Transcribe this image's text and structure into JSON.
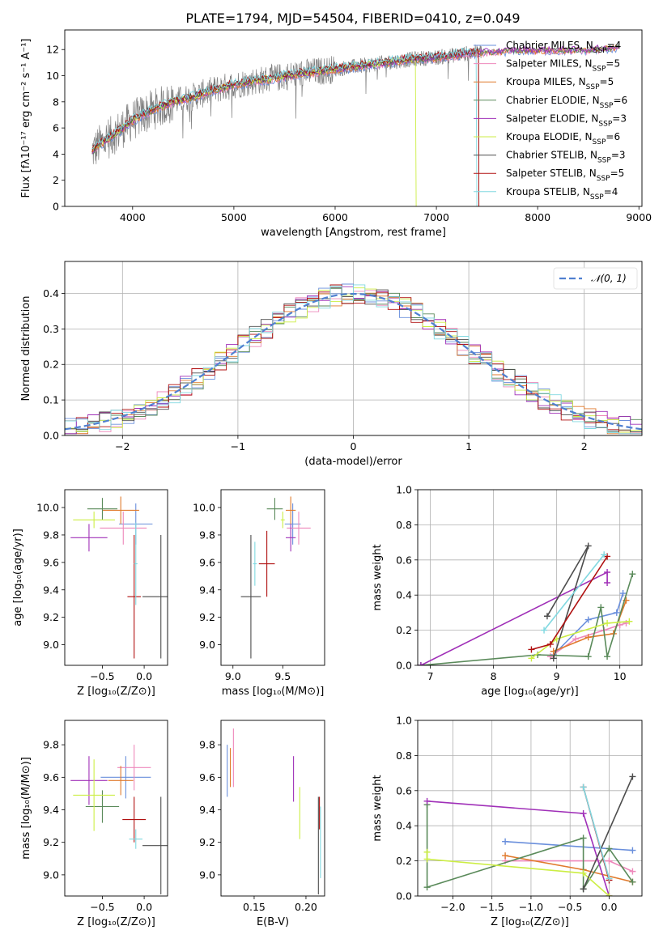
{
  "title": "PLATE=1794, MJD=54504, FIBERID=0410, z=0.049",
  "colors": {
    "chabrier_miles": "#6a8fdc",
    "salpeter_miles": "#ee88bb",
    "kroupa_miles": "#e07a2c",
    "chabrier_elodie": "#5a8a5a",
    "salpeter_elodie": "#a030b8",
    "kroupa_elodie": "#ccee44",
    "chabrier_stelib": "#4d4d4d",
    "salpeter_stelib": "#b01010",
    "kroupa_stelib": "#80d8e0",
    "data_spectrum": "#808080",
    "normal_curve": "#5080d0",
    "grid": "#b0b0b0"
  },
  "legend": [
    {
      "key": "chabrier_miles",
      "label": "Chabrier MILES, N",
      "sub": "SSP",
      "val": "=4"
    },
    {
      "key": "salpeter_miles",
      "label": "Salpeter MILES, N",
      "sub": "SSP",
      "val": "=5"
    },
    {
      "key": "kroupa_miles",
      "label": "Kroupa MILES, N",
      "sub": "SSP",
      "val": "=5"
    },
    {
      "key": "chabrier_elodie",
      "label": "Chabrier ELODIE, N",
      "sub": "SSP",
      "val": "=6"
    },
    {
      "key": "salpeter_elodie",
      "label": "Salpeter ELODIE, N",
      "sub": "SSP",
      "val": "=3"
    },
    {
      "key": "kroupa_elodie",
      "label": "Kroupa ELODIE, N",
      "sub": "SSP",
      "val": "=6"
    },
    {
      "key": "chabrier_stelib",
      "label": "Chabrier STELIB, N",
      "sub": "SSP",
      "val": "=3"
    },
    {
      "key": "salpeter_stelib",
      "label": "Salpeter STELIB, N",
      "sub": "SSP",
      "val": "=5"
    },
    {
      "key": "kroupa_stelib",
      "label": "Kroupa STELIB, N",
      "sub": "SSP",
      "val": "=4"
    }
  ],
  "chart_data": [
    {
      "id": "spectrum",
      "type": "line",
      "xlabel": "wavelength [Angstrom, rest frame]",
      "ylabel": "Flux [fλ10⁻¹⁷ erg cm⁻² s⁻¹ A⁻¹]",
      "xlim": [
        3330,
        9030
      ],
      "ylim": [
        0,
        13.5
      ],
      "xticks": [
        4000,
        5000,
        6000,
        7000,
        8000,
        9000
      ],
      "yticks": [
        0,
        2,
        4,
        6,
        8,
        10,
        12
      ],
      "continuum_x": [
        3600,
        3700,
        3800,
        3900,
        4000,
        4200,
        4400,
        4600,
        4800,
        5000,
        5200,
        5400,
        5600,
        5800,
        6000,
        6200,
        6400,
        6600,
        6800,
        7000,
        7200,
        7400,
        7600,
        7800,
        8000,
        8200,
        8400,
        8600,
        8800
      ],
      "continuum_y": [
        4.2,
        4.9,
        5.4,
        6.0,
        6.6,
        7.4,
        8.0,
        8.4,
        8.9,
        9.3,
        9.6,
        9.8,
        10.1,
        10.3,
        10.5,
        10.7,
        10.9,
        11.1,
        11.3,
        11.4,
        11.6,
        11.8,
        11.9,
        12.0,
        12.0,
        12.0,
        12.0,
        12.1,
        12.2
      ],
      "model_ends_x": {
        "salpeter_stelib": 7420,
        "kroupa_elodie": 6800,
        "kroupa_stelib": 7400,
        "chabrier_stelib": 7420
      }
    },
    {
      "id": "residuals",
      "type": "histogram",
      "xlabel": "(data-model)/error",
      "ylabel": "Normed distribution",
      "xlim": [
        -2.5,
        2.5
      ],
      "ylim": [
        0,
        0.49
      ],
      "xticks": [
        -2,
        -1,
        0,
        1,
        2
      ],
      "yticks": [
        0.0,
        0.1,
        0.2,
        0.3,
        0.4
      ],
      "bin_width": 0.1,
      "legend_label": "𝒩(0, 1)"
    },
    {
      "id": "age_vs_Z",
      "type": "scatter",
      "xlabel": "Z [log₁₀(Z/Z⊙)]",
      "ylabel": "age  [log₁₀(age/yr)]",
      "xlim": [
        -0.95,
        0.28
      ],
      "ylim": [
        8.85,
        10.13
      ],
      "xticks": [
        -0.5,
        0.0
      ],
      "yticks": [
        9.0,
        9.2,
        9.4,
        9.6,
        9.8,
        10.0
      ],
      "points": [
        {
          "s": "chabrier_miles",
          "x": -0.1,
          "y": 9.88,
          "xe": 0.2,
          "ye": 0.15
        },
        {
          "s": "salpeter_miles",
          "x": -0.25,
          "y": 9.85,
          "xe": 0.28,
          "ye": 0.12
        },
        {
          "s": "kroupa_miles",
          "x": -0.28,
          "y": 9.98,
          "xe": 0.22,
          "ye": 0.1
        },
        {
          "s": "chabrier_elodie",
          "x": -0.5,
          "y": 9.99,
          "xe": 0.18,
          "ye": 0.08
        },
        {
          "s": "salpeter_elodie",
          "x": -0.66,
          "y": 9.78,
          "xe": 0.22,
          "ye": 0.1
        },
        {
          "s": "kroupa_elodie",
          "x": -0.6,
          "y": 9.91,
          "xe": 0.25,
          "ye": 0.06
        },
        {
          "s": "chabrier_stelib",
          "x": 0.2,
          "y": 9.35,
          "xe": 0.22,
          "ye": 0.45
        },
        {
          "s": "salpeter_stelib",
          "x": -0.12,
          "y": 9.35,
          "xe": 0.08,
          "ye": 0.45
        },
        {
          "s": "kroupa_stelib",
          "x": -0.1,
          "y": 9.59,
          "xe": 0.02,
          "ye": 0.3
        }
      ]
    },
    {
      "id": "age_vs_mass",
      "type": "scatter",
      "xlabel": "mass [log₁₀(M/M⊙)]",
      "ylabel": "",
      "xlim": [
        8.88,
        9.92
      ],
      "ylim": [
        8.85,
        10.13
      ],
      "xticks": [
        9.0,
        9.5
      ],
      "yticks": [
        9.0,
        9.2,
        9.4,
        9.6,
        9.8,
        10.0
      ],
      "points": [
        {
          "s": "chabrier_miles",
          "x": 9.6,
          "y": 9.88,
          "xe": 0.08,
          "ye": 0.15
        },
        {
          "s": "salpeter_miles",
          "x": 9.66,
          "y": 9.85,
          "xe": 0.12,
          "ye": 0.12
        },
        {
          "s": "kroupa_miles",
          "x": 9.58,
          "y": 9.98,
          "xe": 0.05,
          "ye": 0.1
        },
        {
          "s": "chabrier_elodie",
          "x": 9.42,
          "y": 9.99,
          "xe": 0.08,
          "ye": 0.08
        },
        {
          "s": "salpeter_elodie",
          "x": 9.58,
          "y": 9.78,
          "xe": 0.05,
          "ye": 0.1
        },
        {
          "s": "kroupa_elodie",
          "x": 9.5,
          "y": 9.91,
          "xe": 0.02,
          "ye": 0.06
        },
        {
          "s": "chabrier_stelib",
          "x": 9.18,
          "y": 9.35,
          "xe": 0.1,
          "ye": 0.45
        },
        {
          "s": "salpeter_stelib",
          "x": 9.34,
          "y": 9.59,
          "xe": 0.08,
          "ye": 0.24
        },
        {
          "s": "kroupa_stelib",
          "x": 9.22,
          "y": 9.59,
          "xe": 0.02,
          "ye": 0.16
        }
      ]
    },
    {
      "id": "mass_weight_vs_age",
      "type": "line",
      "xlabel": "age  [log₁₀(age/yr)]",
      "ylabel": "mass weight",
      "xlim": [
        6.8,
        10.35
      ],
      "ylim": [
        0,
        1.0
      ],
      "xticks": [
        7,
        8,
        9,
        10
      ],
      "yticks": [
        0.0,
        0.2,
        0.4,
        0.6,
        0.8,
        1.0
      ],
      "series": [
        {
          "s": "chabrier_miles",
          "x": [
            8.95,
            9.5,
            9.95,
            10.05
          ],
          "y": [
            0.06,
            0.26,
            0.3,
            0.41
          ]
        },
        {
          "s": "salpeter_miles",
          "x": [
            8.9,
            9.3,
            9.75,
            10.0,
            10.1
          ],
          "y": [
            0.05,
            0.15,
            0.2,
            0.23,
            0.24
          ]
        },
        {
          "s": "kroupa_miles",
          "x": [
            8.95,
            9.5,
            9.9,
            10.1
          ],
          "y": [
            0.08,
            0.16,
            0.18,
            0.37
          ]
        },
        {
          "s": "chabrier_elodie",
          "x": [
            6.85,
            8.7,
            9.5,
            9.7,
            9.8,
            10.2
          ],
          "y": [
            0.0,
            0.06,
            0.05,
            0.33,
            0.05,
            0.52
          ]
        },
        {
          "s": "salpeter_elodie",
          "x": [
            6.85,
            9.8,
            9.8
          ],
          "y": [
            0.0,
            0.53,
            0.47
          ]
        },
        {
          "s": "kroupa_elodie",
          "x": [
            8.6,
            9.0,
            9.8,
            10.15
          ],
          "y": [
            0.04,
            0.15,
            0.24,
            0.25
          ]
        },
        {
          "s": "chabrier_stelib",
          "x": [
            8.85,
            9.5,
            8.95
          ],
          "y": [
            0.28,
            0.68,
            0.04
          ]
        },
        {
          "s": "salpeter_stelib",
          "x": [
            8.6,
            8.9,
            9.8
          ],
          "y": [
            0.09,
            0.12,
            0.62
          ]
        },
        {
          "s": "kroupa_stelib",
          "x": [
            8.8,
            9.75
          ],
          "y": [
            0.2,
            0.63
          ]
        }
      ]
    },
    {
      "id": "mass_vs_Z",
      "type": "scatter",
      "xlabel": "Z [log₁₀(Z/Z⊙)]",
      "ylabel": "mass [log₁₀(M/M⊙)]",
      "xlim": [
        -0.95,
        0.28
      ],
      "ylim": [
        8.87,
        9.95
      ],
      "xticks": [
        -0.5,
        0.0
      ],
      "yticks": [
        9.0,
        9.2,
        9.4,
        9.6,
        9.8
      ],
      "points": [
        {
          "s": "chabrier_miles",
          "x": -0.22,
          "y": 9.6,
          "xe": 0.3,
          "ye": 0.13
        },
        {
          "s": "salpeter_miles",
          "x": -0.12,
          "y": 9.66,
          "xe": 0.2,
          "ye": 0.14
        },
        {
          "s": "kroupa_miles",
          "x": -0.28,
          "y": 9.58,
          "xe": 0.15,
          "ye": 0.09
        },
        {
          "s": "chabrier_elodie",
          "x": -0.5,
          "y": 9.42,
          "xe": 0.2,
          "ye": 0.1
        },
        {
          "s": "salpeter_elodie",
          "x": -0.66,
          "y": 9.58,
          "xe": 0.22,
          "ye": 0.15
        },
        {
          "s": "kroupa_elodie",
          "x": -0.6,
          "y": 9.49,
          "xe": 0.25,
          "ye": 0.22
        },
        {
          "s": "chabrier_stelib",
          "x": 0.2,
          "y": 9.18,
          "xe": 0.22,
          "ye": 0.3
        },
        {
          "s": "salpeter_stelib",
          "x": -0.12,
          "y": 9.34,
          "xe": 0.14,
          "ye": 0.14
        },
        {
          "s": "kroupa_stelib",
          "x": -0.1,
          "y": 9.22,
          "xe": 0.08,
          "ye": 0.06
        }
      ]
    },
    {
      "id": "mass_vs_ebv",
      "type": "scatter",
      "xlabel": "E(B-V)",
      "ylabel": "",
      "xlim": [
        0.118,
        0.218
      ],
      "ylim": [
        8.87,
        9.95
      ],
      "xticks": [
        0.15,
        0.2
      ],
      "yticks": [
        9.0,
        9.2,
        9.4,
        9.6,
        9.8
      ],
      "points": [
        {
          "s": "chabrier_miles",
          "x": 0.124,
          "y": 9.64,
          "xe": 0.0,
          "ye": 0.16
        },
        {
          "s": "salpeter_miles",
          "x": 0.13,
          "y": 9.72,
          "xe": 0.0,
          "ye": 0.18
        },
        {
          "s": "kroupa_miles",
          "x": 0.127,
          "y": 9.66,
          "xe": 0.0,
          "ye": 0.12
        },
        {
          "s": "salpeter_elodie",
          "x": 0.188,
          "y": 9.59,
          "xe": 0.0,
          "ye": 0.14
        },
        {
          "s": "kroupa_elodie",
          "x": 0.194,
          "y": 9.38,
          "xe": 0.0,
          "ye": 0.16
        },
        {
          "s": "chabrier_stelib",
          "x": 0.212,
          "y": 9.18,
          "xe": 0.0,
          "ye": 0.3
        },
        {
          "s": "salpeter_stelib",
          "x": 0.213,
          "y": 9.38,
          "xe": 0.0,
          "ye": 0.1
        },
        {
          "s": "kroupa_stelib",
          "x": 0.214,
          "y": 9.2,
          "xe": 0.0,
          "ye": 0.22
        }
      ]
    },
    {
      "id": "mass_weight_vs_Z",
      "type": "line",
      "xlabel": "Z [log₁₀(Z/Z⊙)]",
      "ylabel": "mass weight",
      "xlim": [
        -2.45,
        0.42
      ],
      "ylim": [
        0,
        1.0
      ],
      "xticks": [
        -2.0,
        -1.5,
        -1.0,
        -0.5,
        0.0
      ],
      "yticks": [
        0.0,
        0.2,
        0.4,
        0.6,
        0.8,
        1.0
      ],
      "series": [
        {
          "s": "chabrier_miles",
          "x": [
            -1.33,
            0.3
          ],
          "y": [
            0.31,
            0.26
          ]
        },
        {
          "s": "salpeter_miles",
          "x": [
            -1.33,
            0.0,
            0.3
          ],
          "y": [
            0.2,
            0.2,
            0.14
          ]
        },
        {
          "s": "kroupa_miles",
          "x": [
            -1.33,
            -0.33,
            0.3
          ],
          "y": [
            0.23,
            0.15,
            0.08
          ]
        },
        {
          "s": "chabrier_elodie",
          "x": [
            -2.33,
            -2.33,
            -0.33,
            -0.33,
            0.0,
            0.3
          ],
          "y": [
            0.52,
            0.05,
            0.33,
            0.04,
            0.27,
            0.08
          ]
        },
        {
          "s": "salpeter_elodie",
          "x": [
            -2.33,
            -0.33,
            0.0
          ],
          "y": [
            0.54,
            0.47,
            0.0
          ]
        },
        {
          "s": "kroupa_elodie",
          "x": [
            -2.33,
            -2.33,
            -0.33,
            0.0
          ],
          "y": [
            0.25,
            0.21,
            0.13,
            0.0
          ]
        },
        {
          "s": "chabrier_stelib",
          "x": [
            -0.33,
            0.3
          ],
          "y": [
            0.04,
            0.68
          ]
        },
        {
          "s": "salpeter_stelib",
          "x": [
            -0.33,
            0.0
          ],
          "y": [
            0.62,
            0.09
          ]
        },
        {
          "s": "kroupa_stelib",
          "x": [
            -0.33,
            0.0
          ],
          "y": [
            0.62,
            0.1
          ]
        }
      ]
    }
  ]
}
